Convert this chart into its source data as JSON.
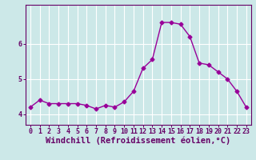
{
  "x": [
    0,
    1,
    2,
    3,
    4,
    5,
    6,
    7,
    8,
    9,
    10,
    11,
    12,
    13,
    14,
    15,
    16,
    17,
    18,
    19,
    20,
    21,
    22,
    23
  ],
  "y": [
    4.2,
    4.4,
    4.3,
    4.3,
    4.3,
    4.3,
    4.25,
    4.15,
    4.25,
    4.2,
    4.35,
    4.65,
    5.3,
    5.55,
    6.6,
    6.6,
    6.55,
    6.2,
    5.45,
    5.4,
    5.2,
    5.0,
    4.65,
    4.2
  ],
  "line_color": "#990099",
  "marker": "D",
  "marker_size": 2.5,
  "bg_color": "#cce8e8",
  "grid_color": "#ffffff",
  "xlabel": "Windchill (Refroidissement éolien,°C)",
  "ylim": [
    3.7,
    7.1
  ],
  "xlim": [
    -0.5,
    23.5
  ],
  "yticks": [
    4,
    5,
    6
  ],
  "xticks": [
    0,
    1,
    2,
    3,
    4,
    5,
    6,
    7,
    8,
    9,
    10,
    11,
    12,
    13,
    14,
    15,
    16,
    17,
    18,
    19,
    20,
    21,
    22,
    23
  ],
  "tick_fontsize": 6,
  "xlabel_fontsize": 7.5,
  "spine_color": "#660066",
  "linewidth": 1.0
}
